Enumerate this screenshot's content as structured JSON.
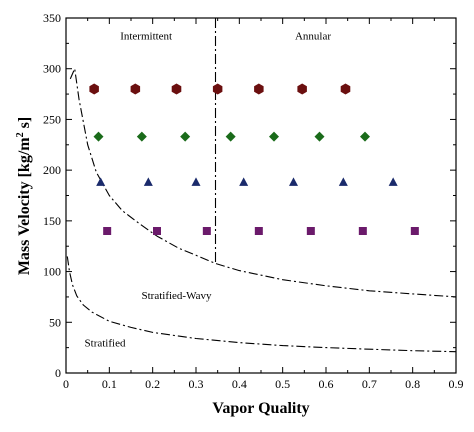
{
  "chart_data": {
    "type": "scatter",
    "xlabel": "Vapor Quality",
    "ylabel_main": "Mass Velocity [kg/m",
    "ylabel_sup": "2",
    "ylabel_tail": " s]",
    "xlim": [
      0,
      0.9
    ],
    "ylim": [
      0,
      350
    ],
    "x_ticks": [
      0,
      0.1,
      0.2,
      0.3,
      0.4,
      0.5,
      0.6,
      0.7,
      0.8,
      0.9
    ],
    "x_tick_labels": [
      "0",
      "0.1",
      "0.2",
      "0.3",
      "0.4",
      "0.5",
      "0.6",
      "0.7",
      "0.8",
      "0.9"
    ],
    "y_ticks": [
      0,
      50,
      100,
      150,
      200,
      250,
      300,
      350
    ],
    "y_tick_labels": [
      "0",
      "50",
      "100",
      "150",
      "200",
      "250",
      "300",
      "350"
    ],
    "grid": false,
    "regions": [
      {
        "label": "Intermittent",
        "x": 0.185,
        "y": 329
      },
      {
        "label": "Annular",
        "x": 0.57,
        "y": 329
      },
      {
        "label": "Stratified-Wavy",
        "x": 0.255,
        "y": 73
      },
      {
        "label": "Stratified",
        "x": 0.09,
        "y": 26
      }
    ],
    "series": [
      {
        "marker": "hexagon",
        "color": "#6b0f0f",
        "x": [
          0.065,
          0.16,
          0.255,
          0.35,
          0.445,
          0.545,
          0.645
        ],
        "y": [
          280,
          280,
          280,
          280,
          280,
          280,
          280
        ]
      },
      {
        "marker": "diamond",
        "color": "#1a6b1a",
        "x": [
          0.075,
          0.175,
          0.275,
          0.38,
          0.48,
          0.585,
          0.69
        ],
        "y": [
          233,
          233,
          233,
          233,
          233,
          233,
          233
        ]
      },
      {
        "marker": "triangle",
        "color": "#1a2a6b",
        "x": [
          0.08,
          0.19,
          0.3,
          0.41,
          0.525,
          0.64,
          0.755
        ],
        "y": [
          188,
          188,
          188,
          188,
          188,
          188,
          188
        ]
      },
      {
        "marker": "square",
        "color": "#6b1a6b",
        "x": [
          0.095,
          0.21,
          0.325,
          0.445,
          0.565,
          0.685,
          0.805
        ],
        "y": [
          140,
          140,
          140,
          140,
          140,
          140,
          140
        ]
      }
    ],
    "boundaries": [
      {
        "name": "upper",
        "x": [
          0.01,
          0.02,
          0.03,
          0.05,
          0.07,
          0.1,
          0.13,
          0.17,
          0.21,
          0.26,
          0.3,
          0.345,
          0.4,
          0.5,
          0.6,
          0.7,
          0.8,
          0.9
        ],
        "y": [
          290,
          300,
          270,
          225,
          198,
          175,
          160,
          147,
          135,
          123,
          116,
          108,
          101,
          92,
          86,
          81,
          78,
          75
        ]
      },
      {
        "name": "lower",
        "x": [
          0.003,
          0.008,
          0.015,
          0.025,
          0.04,
          0.06,
          0.1,
          0.15,
          0.2,
          0.3,
          0.4,
          0.5,
          0.6,
          0.7,
          0.8,
          0.9
        ],
        "y": [
          115,
          100,
          87,
          76,
          67,
          60,
          51,
          45,
          40,
          34,
          30,
          27,
          25,
          23.5,
          22,
          21
        ]
      },
      {
        "name": "vertical",
        "x": [
          0.345,
          0.345
        ],
        "y": [
          350,
          108
        ]
      }
    ]
  }
}
